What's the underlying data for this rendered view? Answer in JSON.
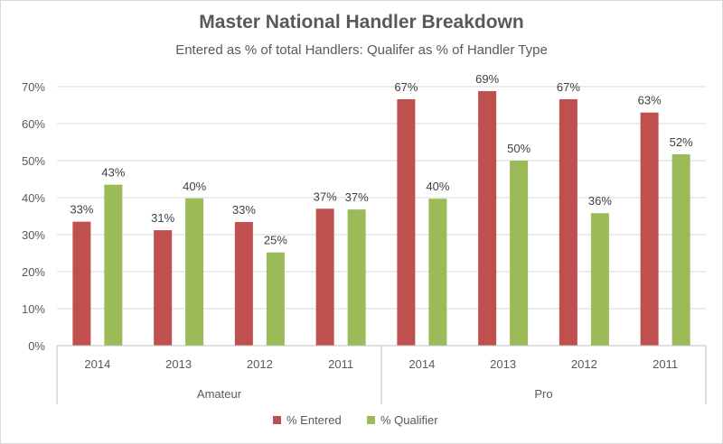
{
  "chart_data": {
    "type": "bar",
    "title": "Master National Handler Breakdown",
    "subtitle": "Entered as % of total Handlers: Qualifer as % of Handler Type",
    "xlabel": "",
    "ylabel": "",
    "ylim": [
      0,
      70
    ],
    "ytick_step": 10,
    "ytick_labels": [
      "0%",
      "10%",
      "20%",
      "30%",
      "40%",
      "50%",
      "60%",
      "70%"
    ],
    "groups": [
      {
        "label": "Amateur",
        "categories": [
          "2014",
          "2013",
          "2012",
          "2011"
        ]
      },
      {
        "label": "Pro",
        "categories": [
          "2014",
          "2013",
          "2012",
          "2011"
        ]
      }
    ],
    "series": [
      {
        "name": "% Entered",
        "color": "#c0504d",
        "values": [
          33.5,
          31.2,
          33.4,
          37.0,
          66.6,
          68.8,
          66.6,
          63.0
        ],
        "labels": [
          "33%",
          "31%",
          "33%",
          "37%",
          "67%",
          "69%",
          "67%",
          "63%"
        ]
      },
      {
        "name": "% Qualifier",
        "color": "#9bbb59",
        "values": [
          43.5,
          39.8,
          25.2,
          36.8,
          39.7,
          50.0,
          35.8,
          51.7
        ],
        "labels": [
          "43%",
          "40%",
          "25%",
          "37%",
          "40%",
          "50%",
          "36%",
          "52%"
        ]
      }
    ],
    "grid": true,
    "legend_position": "bottom",
    "gridline_color": "#d9d9d9",
    "axis_color": "#bfbfbf"
  }
}
